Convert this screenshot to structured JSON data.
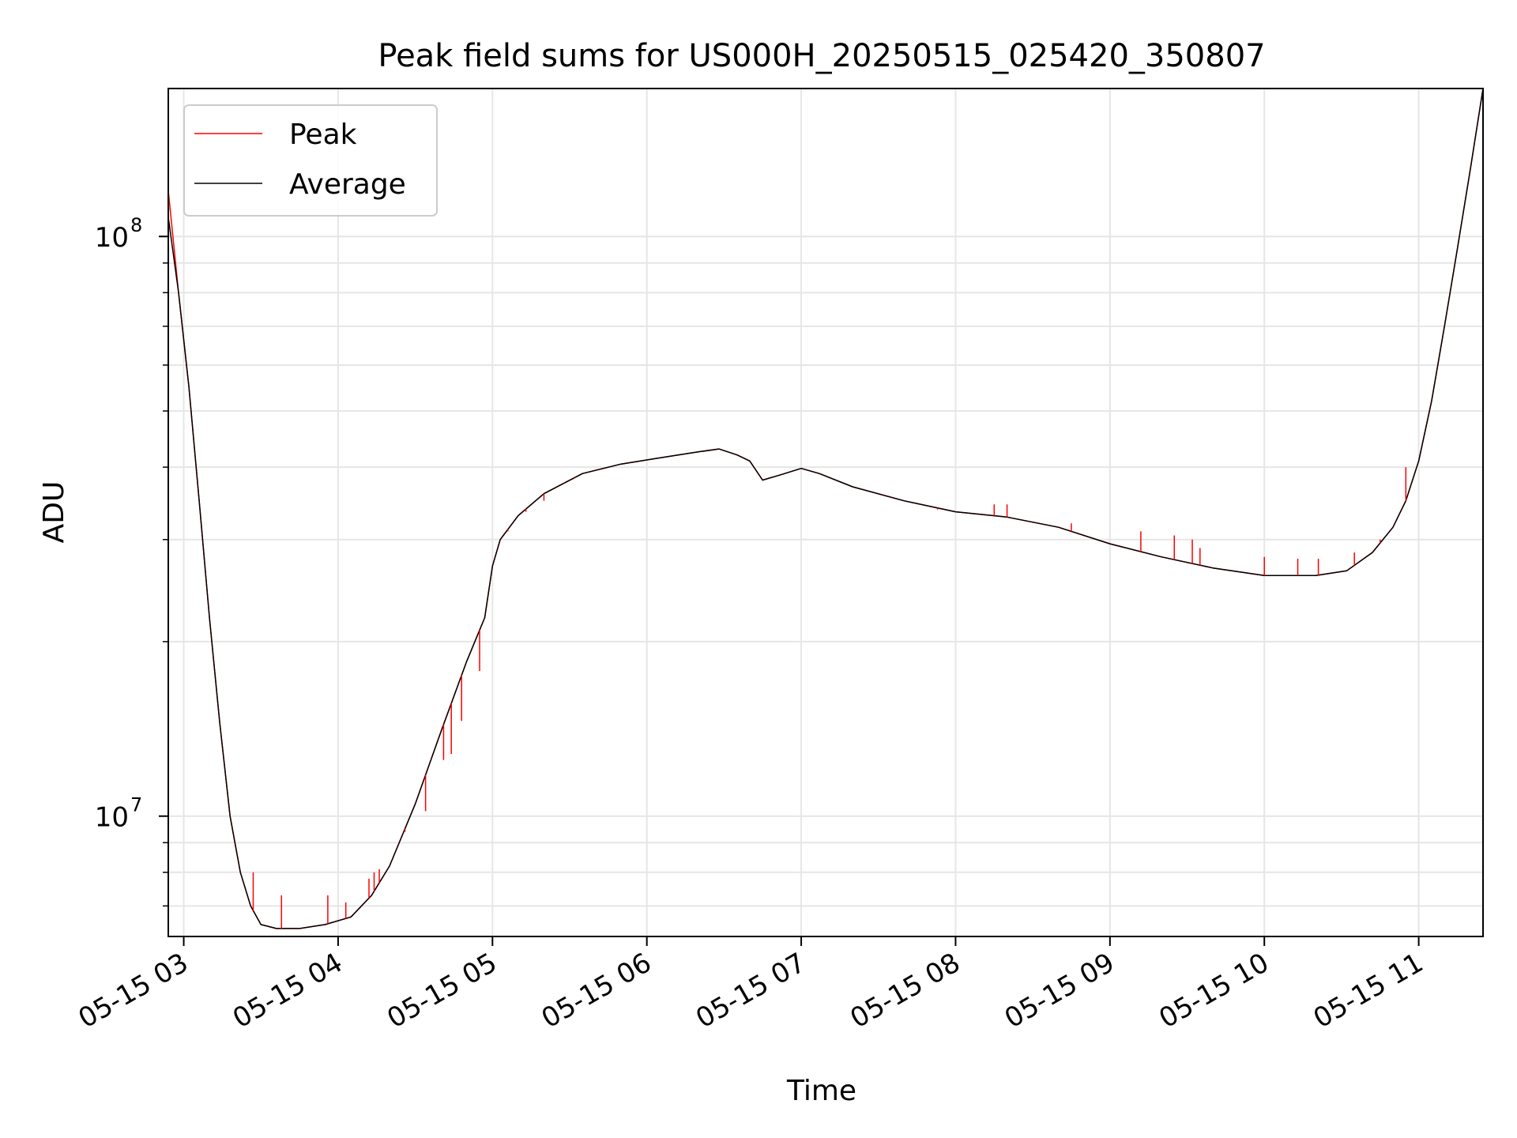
{
  "chart_data": {
    "type": "line",
    "title": "Peak field sums for US000H_20250515_025420_350807",
    "xlabel": "Time",
    "ylabel": "ADU",
    "y_scale": "log",
    "grid": "major and minor",
    "legend_position": "upper-left",
    "xlim": [
      "2025-05-15 02:54",
      "2025-05-15 11:25"
    ],
    "ylim": [
      6200000,
      180000000
    ],
    "x_ticks": [
      {
        "value": "2025-05-15 03:00",
        "label": "05-15 03"
      },
      {
        "value": "2025-05-15 04:00",
        "label": "05-15 04"
      },
      {
        "value": "2025-05-15 05:00",
        "label": "05-15 05"
      },
      {
        "value": "2025-05-15 06:00",
        "label": "05-15 06"
      },
      {
        "value": "2025-05-15 07:00",
        "label": "05-15 07"
      },
      {
        "value": "2025-05-15 08:00",
        "label": "05-15 08"
      },
      {
        "value": "2025-05-15 09:00",
        "label": "05-15 09"
      },
      {
        "value": "2025-05-15 10:00",
        "label": "05-15 10"
      },
      {
        "value": "2025-05-15 11:00",
        "label": "05-15 11"
      }
    ],
    "y_ticks": [
      {
        "value": 10000000,
        "base": "10",
        "exp": "7"
      },
      {
        "value": 100000000,
        "base": "10",
        "exp": "8"
      }
    ],
    "series": [
      {
        "name": "Average",
        "color": "#000000",
        "x": [
          "2025-05-15 02:54",
          "2025-05-15 02:58",
          "2025-05-15 03:02",
          "2025-05-15 03:06",
          "2025-05-15 03:10",
          "2025-05-15 03:14",
          "2025-05-15 03:18",
          "2025-05-15 03:22",
          "2025-05-15 03:26",
          "2025-05-15 03:30",
          "2025-05-15 03:36",
          "2025-05-15 03:45",
          "2025-05-15 03:55",
          "2025-05-15 04:05",
          "2025-05-15 04:13",
          "2025-05-15 04:20",
          "2025-05-15 04:30",
          "2025-05-15 04:40",
          "2025-05-15 04:50",
          "2025-05-15 04:57",
          "2025-05-15 05:00",
          "2025-05-15 05:03",
          "2025-05-15 05:10",
          "2025-05-15 05:20",
          "2025-05-15 05:35",
          "2025-05-15 05:50",
          "2025-05-15 06:05",
          "2025-05-15 06:20",
          "2025-05-15 06:28",
          "2025-05-15 06:35",
          "2025-05-15 06:40",
          "2025-05-15 06:45",
          "2025-05-15 06:52",
          "2025-05-15 07:00",
          "2025-05-15 07:07",
          "2025-05-15 07:20",
          "2025-05-15 07:40",
          "2025-05-15 08:00",
          "2025-05-15 08:20",
          "2025-05-15 08:40",
          "2025-05-15 09:00",
          "2025-05-15 09:20",
          "2025-05-15 09:40",
          "2025-05-15 10:00",
          "2025-05-15 10:20",
          "2025-05-15 10:32",
          "2025-05-15 10:42",
          "2025-05-15 10:50",
          "2025-05-15 10:55",
          "2025-05-15 11:00",
          "2025-05-15 11:05",
          "2025-05-15 11:10",
          "2025-05-15 11:15",
          "2025-05-15 11:20",
          "2025-05-15 11:25"
        ],
        "y": [
          108000000,
          80000000,
          55000000,
          35000000,
          22000000,
          14500000,
          10000000,
          8000000,
          7000000,
          6500000,
          6400000,
          6400000,
          6500000,
          6700000,
          7300000,
          8200000,
          10500000,
          14000000,
          18500000,
          22000000,
          27000000,
          30000000,
          33000000,
          36000000,
          39000000,
          40500000,
          41500000,
          42500000,
          43000000,
          42000000,
          41000000,
          38000000,
          38800000,
          39800000,
          39000000,
          37000000,
          35000000,
          33500000,
          32800000,
          31500000,
          29500000,
          28000000,
          26800000,
          26000000,
          26000000,
          26500000,
          28500000,
          31500000,
          35000000,
          41000000,
          52000000,
          70000000,
          95000000,
          130000000,
          180000000
        ]
      },
      {
        "name": "Peak",
        "color": "#ff0000",
        "x": [
          "2025-05-15 02:54",
          "2025-05-15 02:58",
          "2025-05-15 03:02",
          "2025-05-15 03:06",
          "2025-05-15 03:10",
          "2025-05-15 03:14",
          "2025-05-15 03:18",
          "2025-05-15 03:22",
          "2025-05-15 03:26",
          "2025-05-15 03:30",
          "2025-05-15 03:36",
          "2025-05-15 03:45",
          "2025-05-15 03:55",
          "2025-05-15 04:05",
          "2025-05-15 04:13",
          "2025-05-15 04:20",
          "2025-05-15 04:30",
          "2025-05-15 04:40",
          "2025-05-15 04:50",
          "2025-05-15 04:57",
          "2025-05-15 05:00",
          "2025-05-15 05:03",
          "2025-05-15 05:10",
          "2025-05-15 05:20",
          "2025-05-15 05:35",
          "2025-05-15 05:50",
          "2025-05-15 06:05",
          "2025-05-15 06:20",
          "2025-05-15 06:28",
          "2025-05-15 06:35",
          "2025-05-15 06:40",
          "2025-05-15 06:45",
          "2025-05-15 06:52",
          "2025-05-15 07:00",
          "2025-05-15 07:07",
          "2025-05-15 07:20",
          "2025-05-15 07:40",
          "2025-05-15 08:00",
          "2025-05-15 08:20",
          "2025-05-15 08:40",
          "2025-05-15 09:00",
          "2025-05-15 09:20",
          "2025-05-15 09:40",
          "2025-05-15 10:00",
          "2025-05-15 10:20",
          "2025-05-15 10:32",
          "2025-05-15 10:42",
          "2025-05-15 10:50",
          "2025-05-15 10:55",
          "2025-05-15 11:00",
          "2025-05-15 11:05",
          "2025-05-15 11:10",
          "2025-05-15 11:15",
          "2025-05-15 11:20",
          "2025-05-15 11:25"
        ],
        "y": [
          120000000,
          80000000,
          55000000,
          35000000,
          22000000,
          14500000,
          10000000,
          8000000,
          7000000,
          6500000,
          6400000,
          6400000,
          6500000,
          6700000,
          7300000,
          8200000,
          10500000,
          14000000,
          18500000,
          22000000,
          27000000,
          30000000,
          33000000,
          36000000,
          39000000,
          40500000,
          41500000,
          42500000,
          43000000,
          42000000,
          41000000,
          38000000,
          38800000,
          39800000,
          39000000,
          37000000,
          35000000,
          33500000,
          32800000,
          31500000,
          29500000,
          28000000,
          26800000,
          26000000,
          26000000,
          26500000,
          28500000,
          31500000,
          35000000,
          41000000,
          52000000,
          70000000,
          95000000,
          130000000,
          180000000
        ],
        "spikes": [
          {
            "x": "2025-05-15 03:27",
            "y": 8000000
          },
          {
            "x": "2025-05-15 03:38",
            "y": 7300000
          },
          {
            "x": "2025-05-15 03:56",
            "y": 7300000
          },
          {
            "x": "2025-05-15 04:03",
            "y": 7100000
          },
          {
            "x": "2025-05-15 04:12",
            "y": 7800000
          },
          {
            "x": "2025-05-15 04:14",
            "y": 8000000
          },
          {
            "x": "2025-05-15 04:16",
            "y": 8100000
          },
          {
            "x": "2025-05-15 04:26",
            "y": 9400000
          },
          {
            "x": "2025-05-15 04:34",
            "y": 10200000
          },
          {
            "x": "2025-05-15 04:41",
            "y": 12500000
          },
          {
            "x": "2025-05-15 04:44",
            "y": 12800000
          },
          {
            "x": "2025-05-15 04:48",
            "y": 14600000
          },
          {
            "x": "2025-05-15 04:55",
            "y": 17800000
          },
          {
            "x": "2025-05-15 05:06",
            "y": 31000000
          },
          {
            "x": "2025-05-15 05:13",
            "y": 33500000
          },
          {
            "x": "2025-05-15 05:20",
            "y": 35000000
          },
          {
            "x": "2025-05-15 05:25",
            "y": 37000000
          },
          {
            "x": "2025-05-15 05:28",
            "y": 37500000
          },
          {
            "x": "2025-05-15 05:32",
            "y": 38500000
          },
          {
            "x": "2025-05-15 07:53",
            "y": 33800000
          },
          {
            "x": "2025-05-15 08:15",
            "y": 34500000
          },
          {
            "x": "2025-05-15 08:20",
            "y": 34500000
          },
          {
            "x": "2025-05-15 08:45",
            "y": 32000000
          },
          {
            "x": "2025-05-15 09:12",
            "y": 31000000
          },
          {
            "x": "2025-05-15 09:25",
            "y": 30500000
          },
          {
            "x": "2025-05-15 09:32",
            "y": 30000000
          },
          {
            "x": "2025-05-15 09:35",
            "y": 29000000
          },
          {
            "x": "2025-05-15 10:00",
            "y": 28000000
          },
          {
            "x": "2025-05-15 10:13",
            "y": 27800000
          },
          {
            "x": "2025-05-15 10:21",
            "y": 27800000
          },
          {
            "x": "2025-05-15 10:35",
            "y": 28500000
          },
          {
            "x": "2025-05-15 10:45",
            "y": 30000000
          },
          {
            "x": "2025-05-15 10:55",
            "y": 40000000
          }
        ]
      }
    ]
  }
}
